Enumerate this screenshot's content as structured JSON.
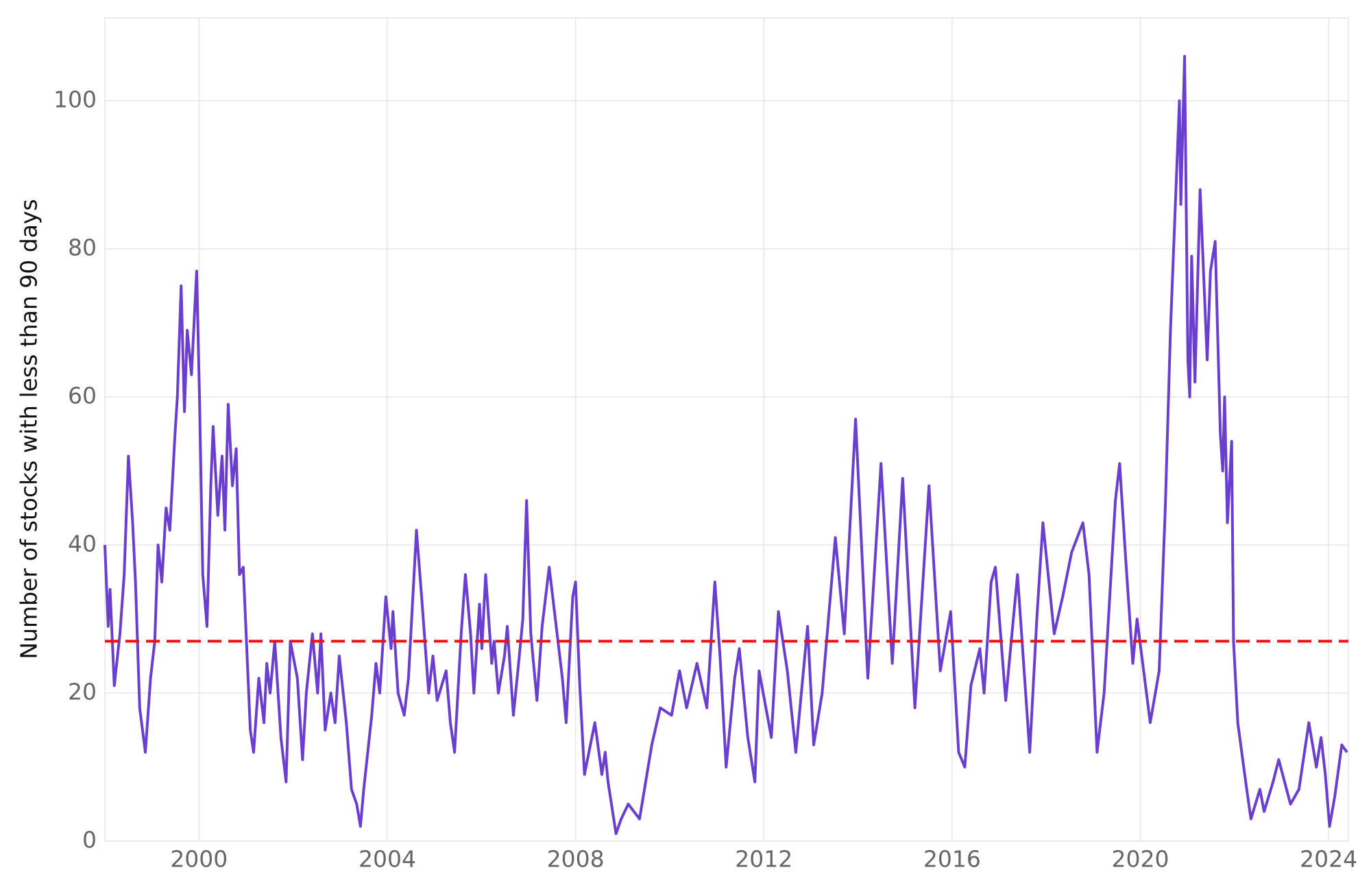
{
  "chart_data": {
    "type": "line",
    "ylabel": "Number of stocks with less than 90 days",
    "xlim": [
      1998.0,
      2024.42
    ],
    "xticks": [
      2000,
      2004,
      2008,
      2012,
      2016,
      2020,
      2024
    ],
    "ylim": [
      0,
      111.2
    ],
    "yticks": [
      0,
      20,
      40,
      60,
      80,
      100
    ],
    "grid": true,
    "reference_line": {
      "value": 27,
      "color": "#ee1111",
      "dashed": true
    },
    "series": [
      {
        "color": "#6a3fd0",
        "x": [
          1998.0,
          1998.07,
          1998.11,
          1998.2,
          1998.32,
          1998.41,
          1998.5,
          1998.59,
          1998.65,
          1998.74,
          1998.86,
          1998.97,
          1999.06,
          1999.13,
          1999.21,
          1999.3,
          1999.38,
          1999.49,
          1999.54,
          1999.62,
          1999.69,
          1999.75,
          1999.84,
          1999.95,
          2000.01,
          2000.08,
          2000.17,
          2000.25,
          2000.3,
          2000.4,
          2000.49,
          2000.55,
          2000.62,
          2000.71,
          2000.79,
          2000.86,
          2000.94,
          2001.09,
          2001.16,
          2001.27,
          2001.38,
          2001.44,
          2001.51,
          2001.61,
          2001.74,
          2001.85,
          2001.94,
          2002.09,
          2002.2,
          2002.28,
          2002.41,
          2002.52,
          2002.59,
          2002.68,
          2002.8,
          2002.89,
          2002.98,
          2003.13,
          2003.24,
          2003.35,
          2003.43,
          2003.5,
          2003.67,
          2003.76,
          2003.84,
          2003.97,
          2004.08,
          2004.12,
          2004.23,
          2004.36,
          2004.45,
          2004.62,
          2004.73,
          2004.88,
          2004.97,
          2005.06,
          2005.25,
          2005.34,
          2005.43,
          2005.57,
          2005.66,
          2005.77,
          2005.84,
          2005.96,
          2006.01,
          2006.09,
          2006.22,
          2006.27,
          2006.36,
          2006.49,
          2006.55,
          2006.68,
          2006.79,
          2006.88,
          2006.96,
          2007.05,
          2007.18,
          2007.29,
          2007.44,
          2007.72,
          2007.8,
          2007.94,
          2008.0,
          2008.09,
          2008.19,
          2008.41,
          2008.56,
          2008.63,
          2008.69,
          2008.86,
          2008.97,
          2009.12,
          2009.36,
          2009.62,
          2009.8,
          2010.04,
          2010.21,
          2010.36,
          2010.58,
          2010.79,
          2010.96,
          2011.07,
          2011.2,
          2011.38,
          2011.48,
          2011.66,
          2011.81,
          2011.9,
          2012.16,
          2012.31,
          2012.5,
          2012.68,
          2012.93,
          2013.06,
          2013.24,
          2013.52,
          2013.71,
          2013.95,
          2014.21,
          2014.49,
          2014.73,
          2014.95,
          2015.21,
          2015.51,
          2015.75,
          2015.97,
          2016.14,
          2016.27,
          2016.4,
          2016.59,
          2016.68,
          2016.83,
          2016.92,
          2017.14,
          2017.39,
          2017.65,
          2017.8,
          2017.93,
          2018.17,
          2018.35,
          2018.54,
          2018.78,
          2018.91,
          2019.08,
          2019.23,
          2019.47,
          2019.56,
          2019.69,
          2019.84,
          2019.93,
          2020.21,
          2020.4,
          2020.53,
          2020.64,
          2020.83,
          2020.86,
          2020.94,
          2021.01,
          2021.05,
          2021.09,
          2021.16,
          2021.27,
          2021.42,
          2021.49,
          2021.59,
          2021.7,
          2021.75,
          2021.79,
          2021.85,
          2021.94,
          2021.98,
          2022.07,
          2022.26,
          2022.35,
          2022.54,
          2022.63,
          2022.82,
          2022.94,
          2023.19,
          2023.37,
          2023.58,
          2023.74,
          2023.84,
          2023.93,
          2024.02,
          2024.13,
          2024.28,
          2024.39
        ],
        "values": [
          40,
          29,
          34,
          21,
          28,
          36,
          52,
          43,
          35,
          18,
          12,
          22,
          27,
          40,
          35,
          45,
          42,
          55,
          60,
          75,
          58,
          69,
          63,
          77,
          60,
          36,
          29,
          48,
          56,
          44,
          52,
          42,
          59,
          48,
          53,
          36,
          37,
          15,
          12,
          22,
          16,
          24,
          20,
          27,
          14,
          8,
          27,
          22,
          11,
          20,
          28,
          20,
          28,
          15,
          20,
          16,
          25,
          16,
          7,
          5,
          2,
          7,
          17,
          24,
          20,
          33,
          26,
          31,
          20,
          17,
          22,
          42,
          33,
          20,
          25,
          19,
          23,
          16,
          12,
          28,
          36,
          28,
          20,
          32,
          26,
          36,
          24,
          27,
          20,
          25,
          29,
          17,
          24,
          30,
          46,
          28,
          19,
          29,
          37,
          22,
          16,
          33,
          35,
          21,
          9,
          16,
          9,
          12,
          8,
          1,
          3,
          5,
          3,
          13,
          18,
          17,
          23,
          18,
          24,
          18,
          35,
          25,
          10,
          22,
          26,
          14,
          8,
          23,
          14,
          31,
          23,
          12,
          29,
          13,
          20,
          41,
          28,
          57,
          22,
          51,
          24,
          49,
          18,
          48,
          23,
          31,
          12,
          10,
          21,
          26,
          20,
          35,
          37,
          19,
          36,
          12,
          30,
          43,
          28,
          33,
          39,
          43,
          36,
          12,
          20,
          46,
          51,
          38,
          24,
          30,
          16,
          23,
          45,
          69,
          100,
          86,
          106,
          65,
          60,
          79,
          62,
          88,
          65,
          77,
          81,
          55,
          50,
          60,
          43,
          54,
          27,
          16,
          7,
          3,
          7,
          4,
          8,
          11,
          5,
          7,
          16,
          10,
          14,
          9,
          2,
          6,
          13,
          12
        ]
      }
    ]
  }
}
